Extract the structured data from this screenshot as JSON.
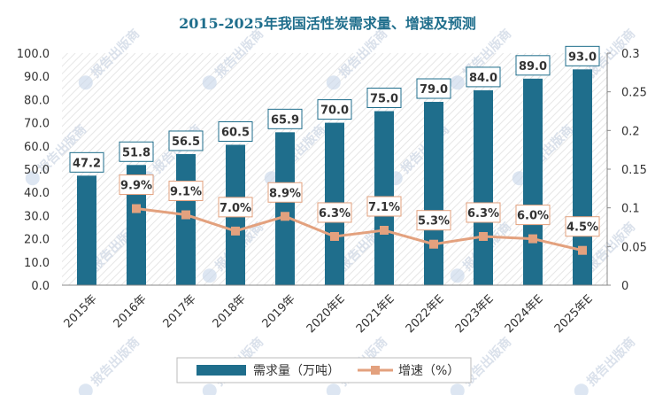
{
  "chart_data": {
    "type": "bar+line",
    "title": "2015-2025年我国活性炭需求量、增速及预测",
    "categories": [
      "2015年",
      "2016年",
      "2017年",
      "2018年",
      "2019年",
      "2020年E",
      "2021年E",
      "2022年E",
      "2023年E",
      "2024年E",
      "2025年E"
    ],
    "series": [
      {
        "name": "需求量（万吨）",
        "type": "bar",
        "axis": "left",
        "values": [
          47.2,
          51.8,
          56.5,
          60.5,
          65.9,
          70.0,
          75.0,
          79.0,
          84.0,
          89.0,
          93.0
        ],
        "labels": [
          "47.2",
          "51.8",
          "56.5",
          "60.5",
          "65.9",
          "70.0",
          "75.0",
          "79.0",
          "84.0",
          "89.0",
          "93.0"
        ]
      },
      {
        "name": "增速（%）",
        "type": "line",
        "axis": "right",
        "values": [
          null,
          0.099,
          0.091,
          0.07,
          0.089,
          0.063,
          0.071,
          0.053,
          0.063,
          0.06,
          0.045
        ],
        "labels": [
          "",
          "9.9%",
          "9.1%",
          "7.0%",
          "8.9%",
          "6.3%",
          "7.1%",
          "5.3%",
          "6.3%",
          "6.0%",
          "4.5%"
        ]
      }
    ],
    "y_left": {
      "min": 0,
      "max": 100,
      "ticks": [
        "0.0",
        "10.0",
        "20.0",
        "30.0",
        "40.0",
        "50.0",
        "60.0",
        "70.0",
        "80.0",
        "90.0",
        "100.0"
      ]
    },
    "y_right": {
      "min": 0,
      "max": 0.3,
      "ticks": [
        "0",
        "0.05",
        "0.1",
        "0.15",
        "0.2",
        "0.25",
        "0.3"
      ]
    },
    "legend": {
      "position": "bottom"
    },
    "grid": false,
    "watermark": "报告出版商",
    "colors": {
      "bar": "#1f6e8c",
      "line": "#e3a17e",
      "title": "#1f6e8c",
      "label_box_border": "#1f6e8c"
    }
  }
}
